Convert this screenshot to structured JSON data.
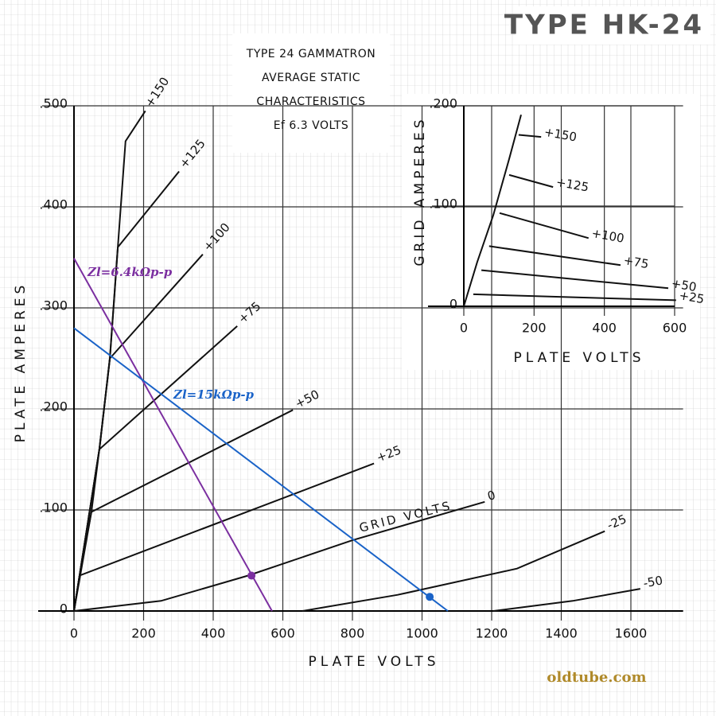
{
  "header": "TYPE HK-24",
  "watermark": "oldtube.com",
  "chart_data": [
    {
      "type": "line",
      "title": [
        "TYPE 24 GAMMATRON",
        "AVERAGE STATIC",
        "CHARACTERISTICS",
        "Ef 6.3 VOLTS"
      ],
      "xlabel": "PLATE VOLTS",
      "ylabel": "PLATE AMPERES",
      "annotation": "GRID VOLTS",
      "xlim": [
        0,
        1750
      ],
      "ylim": [
        0,
        0.5
      ],
      "xticks": [
        0,
        200,
        400,
        600,
        800,
        1000,
        1200,
        1400,
        1600
      ],
      "yticks": [
        0,
        {
          "value": 0.1,
          "label": ".100"
        },
        {
          "value": 0.2,
          "label": ".200"
        },
        {
          "value": 0.3,
          "label": ".300"
        },
        {
          "value": 0.4,
          "label": ".400"
        },
        {
          "value": 0.5,
          "label": ".500"
        }
      ],
      "grid": true,
      "series": [
        {
          "name": "+150",
          "color": "#111111",
          "x": [
            0,
            73,
            103,
            126,
            148,
            205
          ],
          "values": [
            0,
            0.16,
            0.25,
            0.36,
            0.465,
            0.495
          ]
        },
        {
          "name": "+125",
          "color": "#111111",
          "x": [
            0,
            73,
            103,
            126,
            302
          ],
          "values": [
            0,
            0.16,
            0.25,
            0.36,
            0.435
          ]
        },
        {
          "name": "+100",
          "color": "#111111",
          "x": [
            0,
            73,
            103,
            370
          ],
          "values": [
            0,
            0.16,
            0.25,
            0.353
          ]
        },
        {
          "name": "+75",
          "color": "#111111",
          "x": [
            0,
            50,
            73,
            469
          ],
          "values": [
            0,
            0.098,
            0.16,
            0.282
          ]
        },
        {
          "name": "+50",
          "color": "#111111",
          "x": [
            0,
            16,
            50,
            629
          ],
          "values": [
            0,
            0.035,
            0.098,
            0.199
          ]
        },
        {
          "name": "+25",
          "color": "#111111",
          "x": [
            0,
            16,
            862
          ],
          "values": [
            0,
            0.035,
            0.146
          ]
        },
        {
          "name": "0",
          "color": "#111111",
          "x": [
            0,
            250,
            500,
            800,
            1180
          ],
          "values": [
            0,
            0.01,
            0.035,
            0.07,
            0.108
          ]
        },
        {
          "name": "-25",
          "color": "#111111",
          "x": [
            656,
            930,
            1273,
            1525
          ],
          "values": [
            0,
            0.016,
            0.042,
            0.079
          ]
        },
        {
          "name": "-50",
          "color": "#111111",
          "x": [
            1205,
            1433,
            1627
          ],
          "values": [
            0,
            0.01,
            0.022
          ]
        }
      ],
      "load_lines": [
        {
          "name": "Zl=6.4kΩp-p",
          "color": "#7b2fa0",
          "x": [
            0,
            569
          ],
          "values": [
            0.349,
            0
          ],
          "marker": {
            "x": 510,
            "y": 0.035
          }
        },
        {
          "name": "Zl=15kΩp-p",
          "color": "#1a63c8",
          "x": [
            0,
            1074
          ],
          "values": [
            0.28,
            0
          ],
          "marker": {
            "x": 1022,
            "y": 0.014
          }
        }
      ]
    },
    {
      "type": "line",
      "xlabel": "PLATE VOLTS",
      "ylabel": "GRID AMPERES",
      "xlim": [
        0,
        600
      ],
      "ylim": [
        0,
        0.2
      ],
      "xticks": [
        0,
        200,
        400,
        600
      ],
      "yticks": [
        0,
        {
          "value": 0.1,
          "label": ".100"
        },
        {
          "value": 0.2,
          "label": ".200"
        }
      ],
      "grid": true,
      "envelope": {
        "x": [
          0,
          38,
          84,
          129,
          163
        ],
        "values": [
          0,
          0.044,
          0.091,
          0.147,
          0.191
        ]
      },
      "series": [
        {
          "name": "+150",
          "color": "#111111",
          "x": [
            156,
            220
          ],
          "values": [
            0.171,
            0.169
          ]
        },
        {
          "name": "+125",
          "color": "#111111",
          "x": [
            129,
            254
          ],
          "values": [
            0.131,
            0.119
          ]
        },
        {
          "name": "+100",
          "color": "#111111",
          "x": [
            102,
            355
          ],
          "values": [
            0.093,
            0.068
          ]
        },
        {
          "name": "+75",
          "color": "#111111",
          "x": [
            72,
            446
          ],
          "values": [
            0.06,
            0.041
          ]
        },
        {
          "name": "+50",
          "color": "#111111",
          "x": [
            50,
            582
          ],
          "values": [
            0.036,
            0.018
          ]
        },
        {
          "name": "+25",
          "color": "#111111",
          "x": [
            27,
            604
          ],
          "values": [
            0.012,
            0.006
          ]
        }
      ]
    }
  ]
}
